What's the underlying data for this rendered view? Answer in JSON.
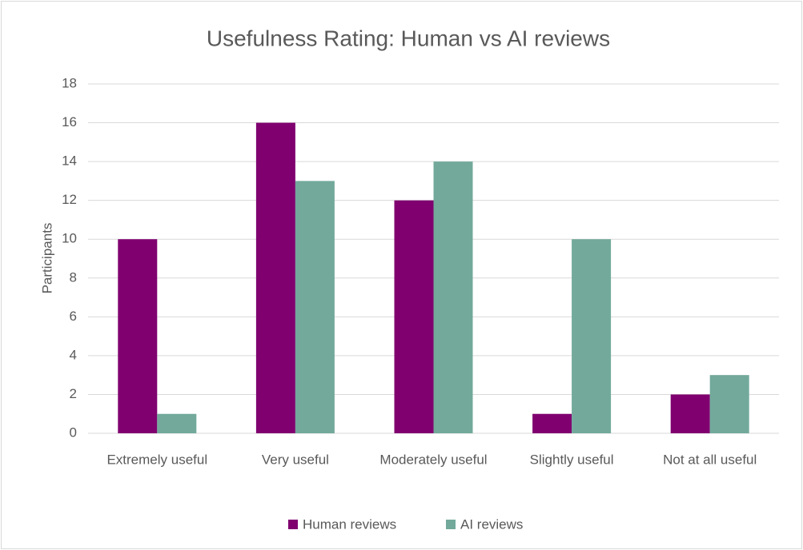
{
  "chart_data": {
    "type": "bar",
    "title": "Usefulness Rating: Human vs AI reviews",
    "y_label": "Participants",
    "categories": [
      "Extremely useful",
      "Very useful",
      "Moderately useful",
      "Slightly useful",
      "Not at all useful"
    ],
    "series": [
      {
        "name": "Human reviews",
        "color": "#800070",
        "values": [
          10,
          16,
          12,
          1,
          2
        ]
      },
      {
        "name": "AI reviews",
        "color": "#72a99b",
        "values": [
          1,
          13,
          14,
          10,
          3
        ]
      }
    ],
    "ylim": [
      0,
      18
    ],
    "yticks": [
      0,
      2,
      4,
      6,
      8,
      10,
      12,
      14,
      16,
      18
    ],
    "grid": true,
    "legend": "bottom"
  }
}
